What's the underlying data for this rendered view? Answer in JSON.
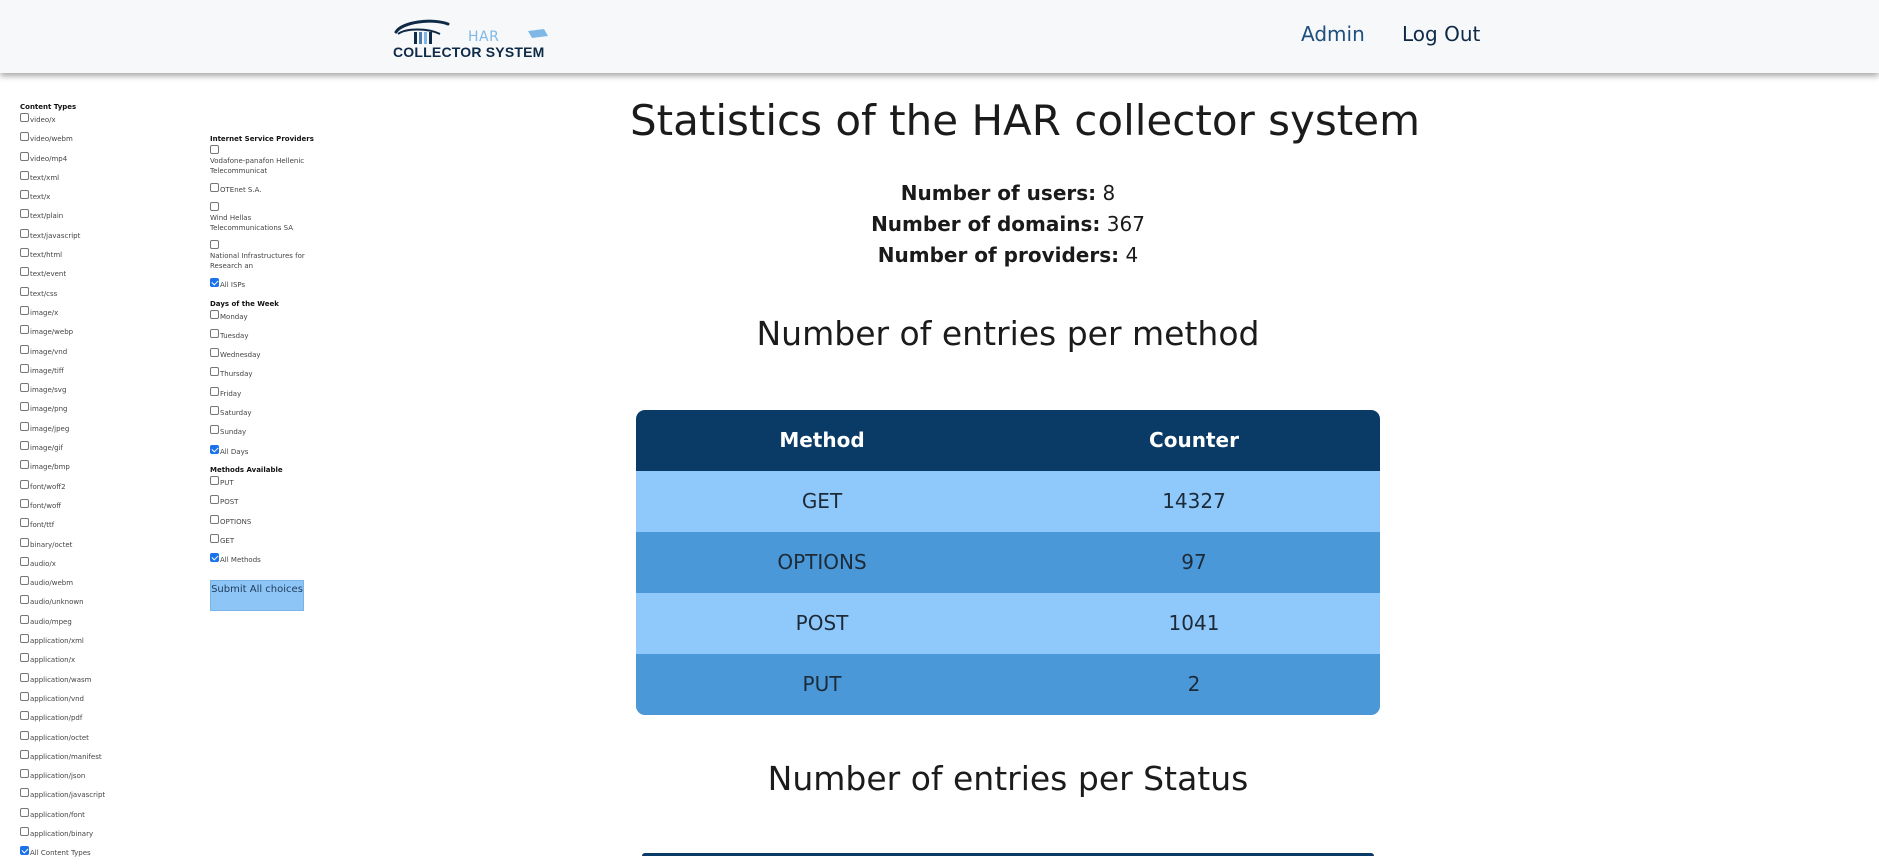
{
  "nav": {
    "logo_har": "HAR",
    "logo_system": "COLLECTOR SYSTEM",
    "admin": "Admin",
    "logout": "Log Out"
  },
  "filters": {
    "content_types_title": "Content Types",
    "content_types": [
      {
        "label": "video/x",
        "checked": false
      },
      {
        "label": "video/webm",
        "checked": false
      },
      {
        "label": "video/mp4",
        "checked": false
      },
      {
        "label": "text/xml",
        "checked": false
      },
      {
        "label": "text/x",
        "checked": false
      },
      {
        "label": "text/plain",
        "checked": false
      },
      {
        "label": "text/javascript",
        "checked": false
      },
      {
        "label": "text/html",
        "checked": false
      },
      {
        "label": "text/event",
        "checked": false
      },
      {
        "label": "text/css",
        "checked": false
      },
      {
        "label": "image/x",
        "checked": false
      },
      {
        "label": "image/webp",
        "checked": false
      },
      {
        "label": "image/vnd",
        "checked": false
      },
      {
        "label": "image/tiff",
        "checked": false
      },
      {
        "label": "image/svg",
        "checked": false
      },
      {
        "label": "image/png",
        "checked": false
      },
      {
        "label": "image/jpeg",
        "checked": false
      },
      {
        "label": "image/gif",
        "checked": false
      },
      {
        "label": "image/bmp",
        "checked": false
      },
      {
        "label": "font/woff2",
        "checked": false
      },
      {
        "label": "font/woff",
        "checked": false
      },
      {
        "label": "font/ttf",
        "checked": false
      },
      {
        "label": "binary/octet",
        "checked": false
      },
      {
        "label": "audio/x",
        "checked": false
      },
      {
        "label": "audio/webm",
        "checked": false
      },
      {
        "label": "audio/unknown",
        "checked": false
      },
      {
        "label": "audio/mpeg",
        "checked": false
      },
      {
        "label": "application/xml",
        "checked": false
      },
      {
        "label": "application/x",
        "checked": false
      },
      {
        "label": "application/wasm",
        "checked": false
      },
      {
        "label": "application/vnd",
        "checked": false
      },
      {
        "label": "application/pdf",
        "checked": false
      },
      {
        "label": "application/octet",
        "checked": false
      },
      {
        "label": "application/manifest",
        "checked": false
      },
      {
        "label": "application/json",
        "checked": false
      },
      {
        "label": "application/javascript",
        "checked": false
      },
      {
        "label": "application/font",
        "checked": false
      },
      {
        "label": "application/binary",
        "checked": false
      },
      {
        "label": "All Content Types",
        "checked": true
      }
    ],
    "isp_title": "Internet Service Providers",
    "isps": [
      {
        "label": "Vodafone-panafon Hellenic Telecommunicat",
        "checked": false,
        "tall": true
      },
      {
        "label": "OTEnet S.A.",
        "checked": false,
        "tall": false
      },
      {
        "label": "Wind Hellas Telecommunications SA",
        "checked": false,
        "tall": true
      },
      {
        "label": "National Infrastructures for Research an",
        "checked": false,
        "tall": true
      },
      {
        "label": "All ISPs",
        "checked": true,
        "tall": false
      }
    ],
    "days_title": "Days of the Week",
    "days": [
      {
        "label": "Monday",
        "checked": false
      },
      {
        "label": "Tuesday",
        "checked": false
      },
      {
        "label": "Wednesday",
        "checked": false
      },
      {
        "label": "Thursday",
        "checked": false
      },
      {
        "label": "Friday",
        "checked": false
      },
      {
        "label": "Saturday",
        "checked": false
      },
      {
        "label": "Sunday",
        "checked": false
      },
      {
        "label": "All Days",
        "checked": true
      }
    ],
    "methods_title": "Methods Available",
    "methods": [
      {
        "label": "PUT",
        "checked": false
      },
      {
        "label": "POST",
        "checked": false
      },
      {
        "label": "OPTIONS",
        "checked": false
      },
      {
        "label": "GET",
        "checked": false
      },
      {
        "label": "All Methods",
        "checked": true
      }
    ],
    "submit_label": "Submit All choices"
  },
  "main": {
    "title": "Statistics of the HAR collector system",
    "stats": [
      {
        "label": "Number of users:",
        "value": "8"
      },
      {
        "label": "Number of domains:",
        "value": "367"
      },
      {
        "label": "Number of providers:",
        "value": "4"
      }
    ],
    "methods_title": "Number of entries per method",
    "methods_table": {
      "headers": [
        "Method",
        "Counter"
      ],
      "rows": [
        [
          "GET",
          "14327"
        ],
        [
          "OPTIONS",
          "97"
        ],
        [
          "POST",
          "1041"
        ],
        [
          "PUT",
          "2"
        ]
      ]
    },
    "status_title": "Number of entries per Status"
  },
  "colors": {
    "table_header": "#0a3a66",
    "row_light": "#8fc8fb",
    "row_dark": "#4b98d8",
    "submit_button": "#8ec5f7",
    "nav_link": "#1f4f7d"
  }
}
